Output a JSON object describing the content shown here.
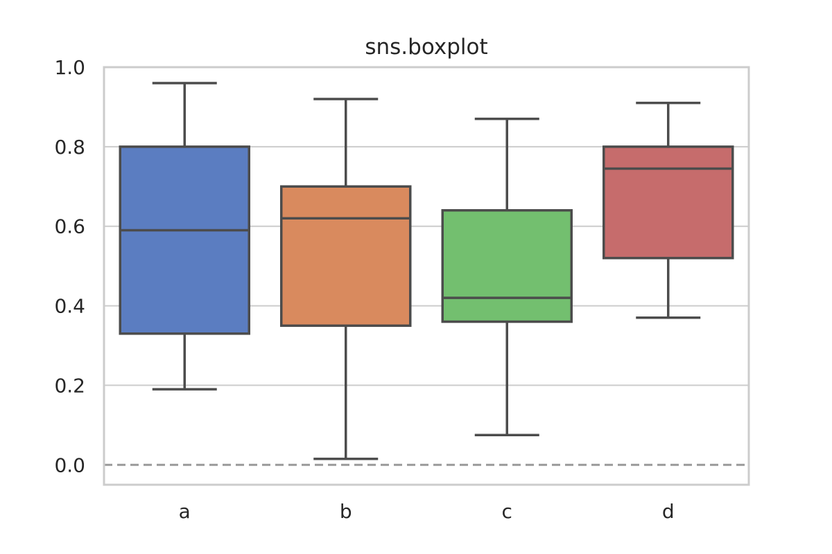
{
  "chart_data": {
    "type": "box",
    "title": "sns.boxplot",
    "xlabel": "",
    "ylabel": "",
    "ylim": [
      -0.05,
      1.0
    ],
    "yticks": [
      "0.0",
      "0.2",
      "0.4",
      "0.6",
      "0.8",
      "1.0"
    ],
    "grid": "horizontal",
    "reference_line": {
      "y": 0.0,
      "style": "dashed",
      "color": "#999999"
    },
    "categories": [
      "a",
      "b",
      "c",
      "d"
    ],
    "boxes": [
      {
        "category": "a",
        "whisker_low": 0.19,
        "q1": 0.33,
        "median": 0.59,
        "q3": 0.8,
        "whisker_high": 0.96,
        "color": "#5b7dc1"
      },
      {
        "category": "b",
        "whisker_low": 0.015,
        "q1": 0.35,
        "median": 0.62,
        "q3": 0.7,
        "whisker_high": 0.92,
        "color": "#d98a5e"
      },
      {
        "category": "c",
        "whisker_low": 0.075,
        "q1": 0.36,
        "median": 0.42,
        "q3": 0.64,
        "whisker_high": 0.87,
        "color": "#73bf6f"
      },
      {
        "category": "d",
        "whisker_low": 0.37,
        "q1": 0.52,
        "median": 0.745,
        "q3": 0.8,
        "whisker_high": 0.91,
        "color": "#c66c6c"
      }
    ]
  }
}
